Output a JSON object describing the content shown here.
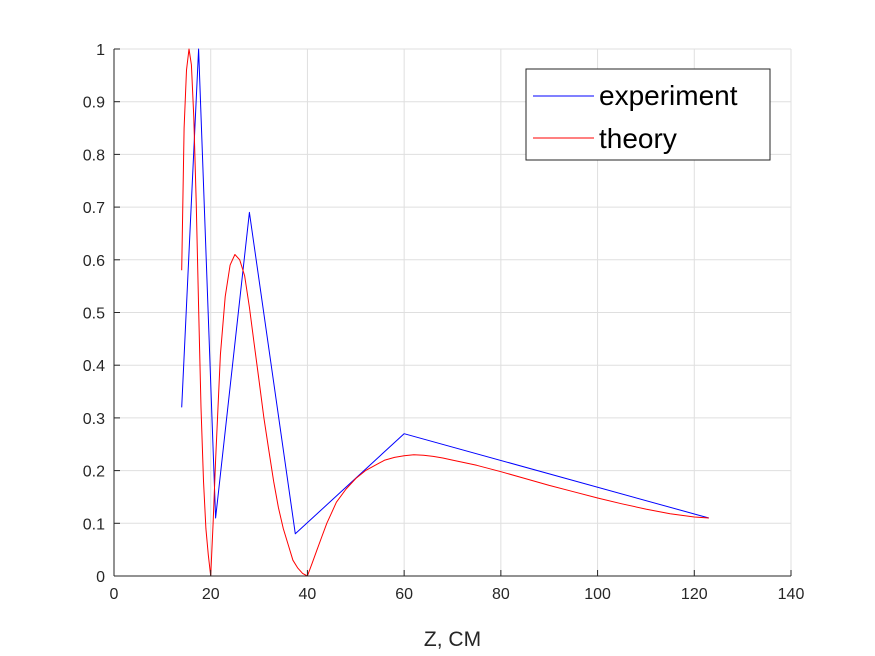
{
  "chart_data": {
    "type": "line",
    "title": "",
    "xlabel": "Z, CM",
    "ylabel": "",
    "xlim": [
      0,
      140
    ],
    "ylim": [
      0,
      1
    ],
    "x_ticks": [
      "0",
      "20",
      "40",
      "60",
      "80",
      "100",
      "120",
      "140"
    ],
    "y_ticks": [
      "0",
      "0.1",
      "0.2",
      "0.3",
      "0.4",
      "0.5",
      "0.6",
      "0.7",
      "0.8",
      "0.9",
      "1"
    ],
    "grid": true,
    "legend_position": "top-right",
    "series": [
      {
        "name": "experiment",
        "color": "#0000ff",
        "x": [
          14,
          17.5,
          21,
          28,
          37.5,
          60,
          123
        ],
        "y": [
          0.32,
          1.0,
          0.11,
          0.69,
          0.08,
          0.27,
          0.11
        ]
      },
      {
        "name": "theory",
        "color": "#ff0000",
        "x": [
          14,
          14.5,
          15,
          15.5,
          16,
          16.5,
          17,
          17.5,
          18,
          18.5,
          19,
          19.5,
          20,
          20.5,
          21,
          22,
          23,
          24,
          25,
          26,
          27,
          28,
          29,
          30,
          31,
          32,
          33,
          34,
          35,
          36,
          37,
          38,
          39,
          40,
          41,
          42,
          43,
          44,
          45,
          46,
          48,
          50,
          52,
          54,
          56,
          58,
          60,
          62,
          64,
          66,
          68,
          70,
          75,
          80,
          85,
          90,
          95,
          100,
          105,
          110,
          115,
          120,
          123
        ],
        "y": [
          0.58,
          0.85,
          0.96,
          1.0,
          0.97,
          0.87,
          0.71,
          0.51,
          0.32,
          0.18,
          0.09,
          0.04,
          0.0,
          0.1,
          0.22,
          0.42,
          0.53,
          0.59,
          0.61,
          0.6,
          0.57,
          0.51,
          0.44,
          0.37,
          0.3,
          0.24,
          0.18,
          0.13,
          0.09,
          0.06,
          0.03,
          0.015,
          0.005,
          0.0,
          0.025,
          0.05,
          0.075,
          0.1,
          0.12,
          0.14,
          0.165,
          0.185,
          0.2,
          0.21,
          0.22,
          0.225,
          0.228,
          0.23,
          0.229,
          0.227,
          0.224,
          0.22,
          0.21,
          0.198,
          0.185,
          0.172,
          0.16,
          0.148,
          0.137,
          0.127,
          0.118,
          0.112,
          0.11
        ]
      }
    ]
  }
}
